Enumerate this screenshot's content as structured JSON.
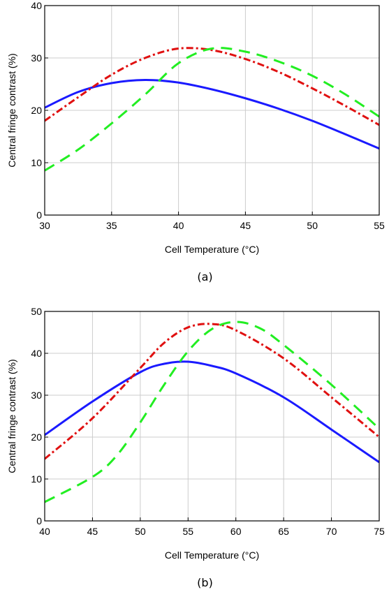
{
  "colors": {
    "blue": "#1a1aff",
    "red": "#e01010",
    "green": "#22ee22",
    "grid": "#cccccc"
  },
  "chart_data": [
    {
      "type": "line",
      "caption": "(a)",
      "xlabel": "Cell Temperature (°C)",
      "ylabel": "Central fringe contrast (%)",
      "xlim": [
        30,
        55
      ],
      "ylim": [
        0,
        40
      ],
      "xticks": [
        "30",
        "35",
        "40",
        "45",
        "50",
        "55"
      ],
      "yticks": [
        "0",
        "10",
        "20",
        "30",
        "40"
      ],
      "grid": true,
      "series": [
        {
          "style": "solid",
          "color": "blue",
          "x": [
            30,
            32.5,
            35,
            37.5,
            40,
            42.5,
            45,
            47.5,
            50,
            52.5,
            55
          ],
          "y": [
            20.5,
            23.5,
            25.2,
            25.8,
            25.3,
            24.0,
            22.3,
            20.3,
            18.0,
            15.4,
            12.7
          ]
        },
        {
          "style": "dashdot",
          "color": "red",
          "x": [
            30,
            32.5,
            35,
            37.5,
            40,
            42.5,
            45,
            47.5,
            50,
            52.5,
            55
          ],
          "y": [
            18.0,
            22.5,
            26.8,
            30.0,
            31.8,
            31.5,
            29.8,
            27.3,
            24.2,
            20.8,
            17.2
          ]
        },
        {
          "style": "dashed",
          "color": "green",
          "x": [
            30,
            32.5,
            35,
            37.5,
            40,
            42.5,
            45,
            47.5,
            50,
            52.5,
            55
          ],
          "y": [
            8.5,
            12.5,
            17.5,
            23.0,
            29.0,
            31.8,
            31.2,
            29.3,
            26.6,
            23.0,
            18.8
          ]
        }
      ]
    },
    {
      "type": "line",
      "caption": "(b)",
      "xlabel": "Cell Temperature (°C)",
      "ylabel": "Central fringe contrast (%)",
      "xlim": [
        40,
        75
      ],
      "ylim": [
        0,
        50
      ],
      "xticks": [
        "40",
        "45",
        "50",
        "55",
        "60",
        "65",
        "70",
        "75"
      ],
      "yticks": [
        "0",
        "10",
        "20",
        "30",
        "40",
        "50"
      ],
      "grid": true,
      "series": [
        {
          "style": "solid",
          "color": "blue",
          "x": [
            40,
            45,
            50,
            52.5,
            55,
            57.5,
            60,
            65,
            70,
            75
          ],
          "y": [
            20.5,
            28.5,
            35.5,
            37.5,
            38.0,
            37.0,
            35.2,
            29.5,
            21.8,
            14.0
          ]
        },
        {
          "style": "dashdot",
          "color": "red",
          "x": [
            40,
            45,
            50,
            52.5,
            55,
            57.5,
            60,
            65,
            70,
            75
          ],
          "y": [
            14.8,
            24.5,
            36.5,
            42.5,
            46.2,
            47.0,
            45.5,
            38.8,
            29.5,
            20.0
          ]
        },
        {
          "style": "dashed",
          "color": "green",
          "x": [
            40,
            45,
            47.5,
            50,
            52.5,
            55,
            57.5,
            60,
            62.5,
            65,
            70,
            75
          ],
          "y": [
            4.5,
            10.5,
            15.5,
            23.5,
            32.5,
            40.5,
            45.8,
            47.5,
            46.0,
            42.0,
            32.5,
            22.0
          ]
        }
      ]
    }
  ]
}
